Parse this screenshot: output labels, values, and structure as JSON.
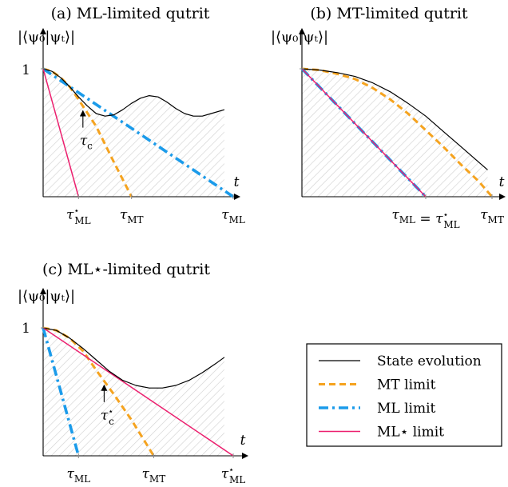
{
  "colors": {
    "state": "#000000",
    "mt": "#f5a31f",
    "ml": "#1b9bea",
    "mlstar": "#ec1f6e",
    "hatch": "#d2d2d2"
  },
  "legend": {
    "items": [
      {
        "key": "state",
        "label": "State evolution"
      },
      {
        "key": "mt",
        "label": "MT limit"
      },
      {
        "key": "ml",
        "label": "ML limit"
      },
      {
        "key": "mlstar",
        "label": "ML⋆ limit"
      }
    ]
  },
  "chart_data": [
    {
      "id": "a",
      "type": "line",
      "title": "(a) ML-limited qutrit",
      "ylabel": "|⟨ψ₀|ψₜ⟩|",
      "xlabel": "t",
      "ylim": [
        0,
        1
      ],
      "ytick_label": "1",
      "xlim": [
        0,
        4.3
      ],
      "x_ticks": [
        {
          "x": 0.8,
          "label": "τ⋆ML"
        },
        {
          "x": 2.0,
          "label": "τMT"
        },
        {
          "x": 4.3,
          "label": "τML"
        }
      ],
      "annotations": [
        {
          "label": "τc",
          "x": 0.9,
          "y": 0.69
        }
      ],
      "state_curve": [
        [
          0,
          1
        ],
        [
          0.2,
          0.98
        ],
        [
          0.4,
          0.93
        ],
        [
          0.6,
          0.86
        ],
        [
          0.8,
          0.78
        ],
        [
          1.0,
          0.71
        ],
        [
          1.2,
          0.65
        ],
        [
          1.4,
          0.63
        ],
        [
          1.6,
          0.64
        ],
        [
          1.8,
          0.68
        ],
        [
          2.0,
          0.73
        ],
        [
          2.2,
          0.77
        ],
        [
          2.4,
          0.79
        ],
        [
          2.6,
          0.78
        ],
        [
          2.8,
          0.74
        ],
        [
          3.0,
          0.69
        ],
        [
          3.2,
          0.65
        ],
        [
          3.4,
          0.63
        ],
        [
          3.6,
          0.63
        ],
        [
          3.8,
          0.65
        ],
        [
          4.1,
          0.68
        ]
      ],
      "series": [
        {
          "key": "mt",
          "points": [
            [
              0,
              1
            ],
            [
              0.2,
              0.98
            ],
            [
              0.4,
              0.93
            ],
            [
              0.6,
              0.86
            ],
            [
              0.8,
              0.76
            ],
            [
              1.2,
              0.55
            ],
            [
              1.6,
              0.27
            ],
            [
              2.0,
              0
            ]
          ]
        },
        {
          "key": "ml",
          "points": [
            [
              0,
              1
            ],
            [
              4.3,
              0
            ]
          ]
        },
        {
          "key": "mlstar",
          "points": [
            [
              0,
              1
            ],
            [
              0.8,
              0
            ]
          ]
        }
      ]
    },
    {
      "id": "b",
      "type": "line",
      "title": "(b) MT-limited qutrit",
      "ylabel": "|⟨ψ₀|ψₜ⟩|",
      "xlabel": "t",
      "ylim": [
        0,
        1
      ],
      "ytick_label": "1",
      "xlim": [
        0,
        4.3
      ],
      "x_ticks": [
        {
          "x": 2.8,
          "label": "τML = τ⋆ML"
        },
        {
          "x": 4.3,
          "label": "τMT"
        }
      ],
      "annotations": [],
      "state_curve": [
        [
          0,
          1
        ],
        [
          0.4,
          0.99
        ],
        [
          0.8,
          0.97
        ],
        [
          1.2,
          0.94
        ],
        [
          1.6,
          0.89
        ],
        [
          2.0,
          0.82
        ],
        [
          2.4,
          0.73
        ],
        [
          2.8,
          0.63
        ],
        [
          3.2,
          0.51
        ],
        [
          3.6,
          0.39
        ],
        [
          4.0,
          0.27
        ],
        [
          4.2,
          0.21
        ]
      ],
      "series": [
        {
          "key": "mt",
          "points": [
            [
              0,
              1
            ],
            [
              0.4,
              0.99
            ],
            [
              0.8,
              0.96
            ],
            [
              1.2,
              0.92
            ],
            [
              1.6,
              0.85
            ],
            [
              2.0,
              0.76
            ],
            [
              2.4,
              0.65
            ],
            [
              2.8,
              0.52
            ],
            [
              3.2,
              0.39
            ],
            [
              3.6,
              0.25
            ],
            [
              4.0,
              0.12
            ],
            [
              4.3,
              0
            ]
          ]
        },
        {
          "key": "ml",
          "points": [
            [
              0,
              1
            ],
            [
              2.8,
              0
            ]
          ]
        },
        {
          "key": "mlstar",
          "points": [
            [
              0,
              1
            ],
            [
              2.8,
              0
            ]
          ]
        }
      ]
    },
    {
      "id": "c",
      "type": "line",
      "title": "(c) ML⋆-limited qutrit",
      "ylabel": "|⟨ψ₀|ψₜ⟩|",
      "xlabel": "t",
      "ylim": [
        0,
        1
      ],
      "ytick_label": "1",
      "xlim": [
        0,
        4.3
      ],
      "x_ticks": [
        {
          "x": 0.8,
          "label": "τML"
        },
        {
          "x": 2.5,
          "label": "τMT"
        },
        {
          "x": 4.3,
          "label": "τ⋆ML"
        }
      ],
      "annotations": [
        {
          "label": "τ⋆c",
          "x": 1.38,
          "y": 0.57
        }
      ],
      "state_curve": [
        [
          0,
          1
        ],
        [
          0.3,
          0.98
        ],
        [
          0.6,
          0.92
        ],
        [
          0.9,
          0.84
        ],
        [
          1.2,
          0.75
        ],
        [
          1.5,
          0.66
        ],
        [
          1.8,
          0.59
        ],
        [
          2.1,
          0.55
        ],
        [
          2.4,
          0.53
        ],
        [
          2.7,
          0.53
        ],
        [
          3.0,
          0.55
        ],
        [
          3.3,
          0.59
        ],
        [
          3.6,
          0.65
        ],
        [
          3.9,
          0.72
        ],
        [
          4.1,
          0.77
        ]
      ],
      "series": [
        {
          "key": "mt",
          "points": [
            [
              0,
              1
            ],
            [
              0.3,
              0.98
            ],
            [
              0.6,
              0.92
            ],
            [
              0.9,
              0.82
            ],
            [
              1.2,
              0.67
            ],
            [
              1.6,
              0.48
            ],
            [
              2.0,
              0.28
            ],
            [
              2.5,
              0
            ]
          ]
        },
        {
          "key": "ml",
          "points": [
            [
              0,
              1
            ],
            [
              0.8,
              0
            ]
          ]
        },
        {
          "key": "mlstar",
          "points": [
            [
              0,
              1
            ],
            [
              4.3,
              0
            ]
          ]
        }
      ]
    }
  ]
}
